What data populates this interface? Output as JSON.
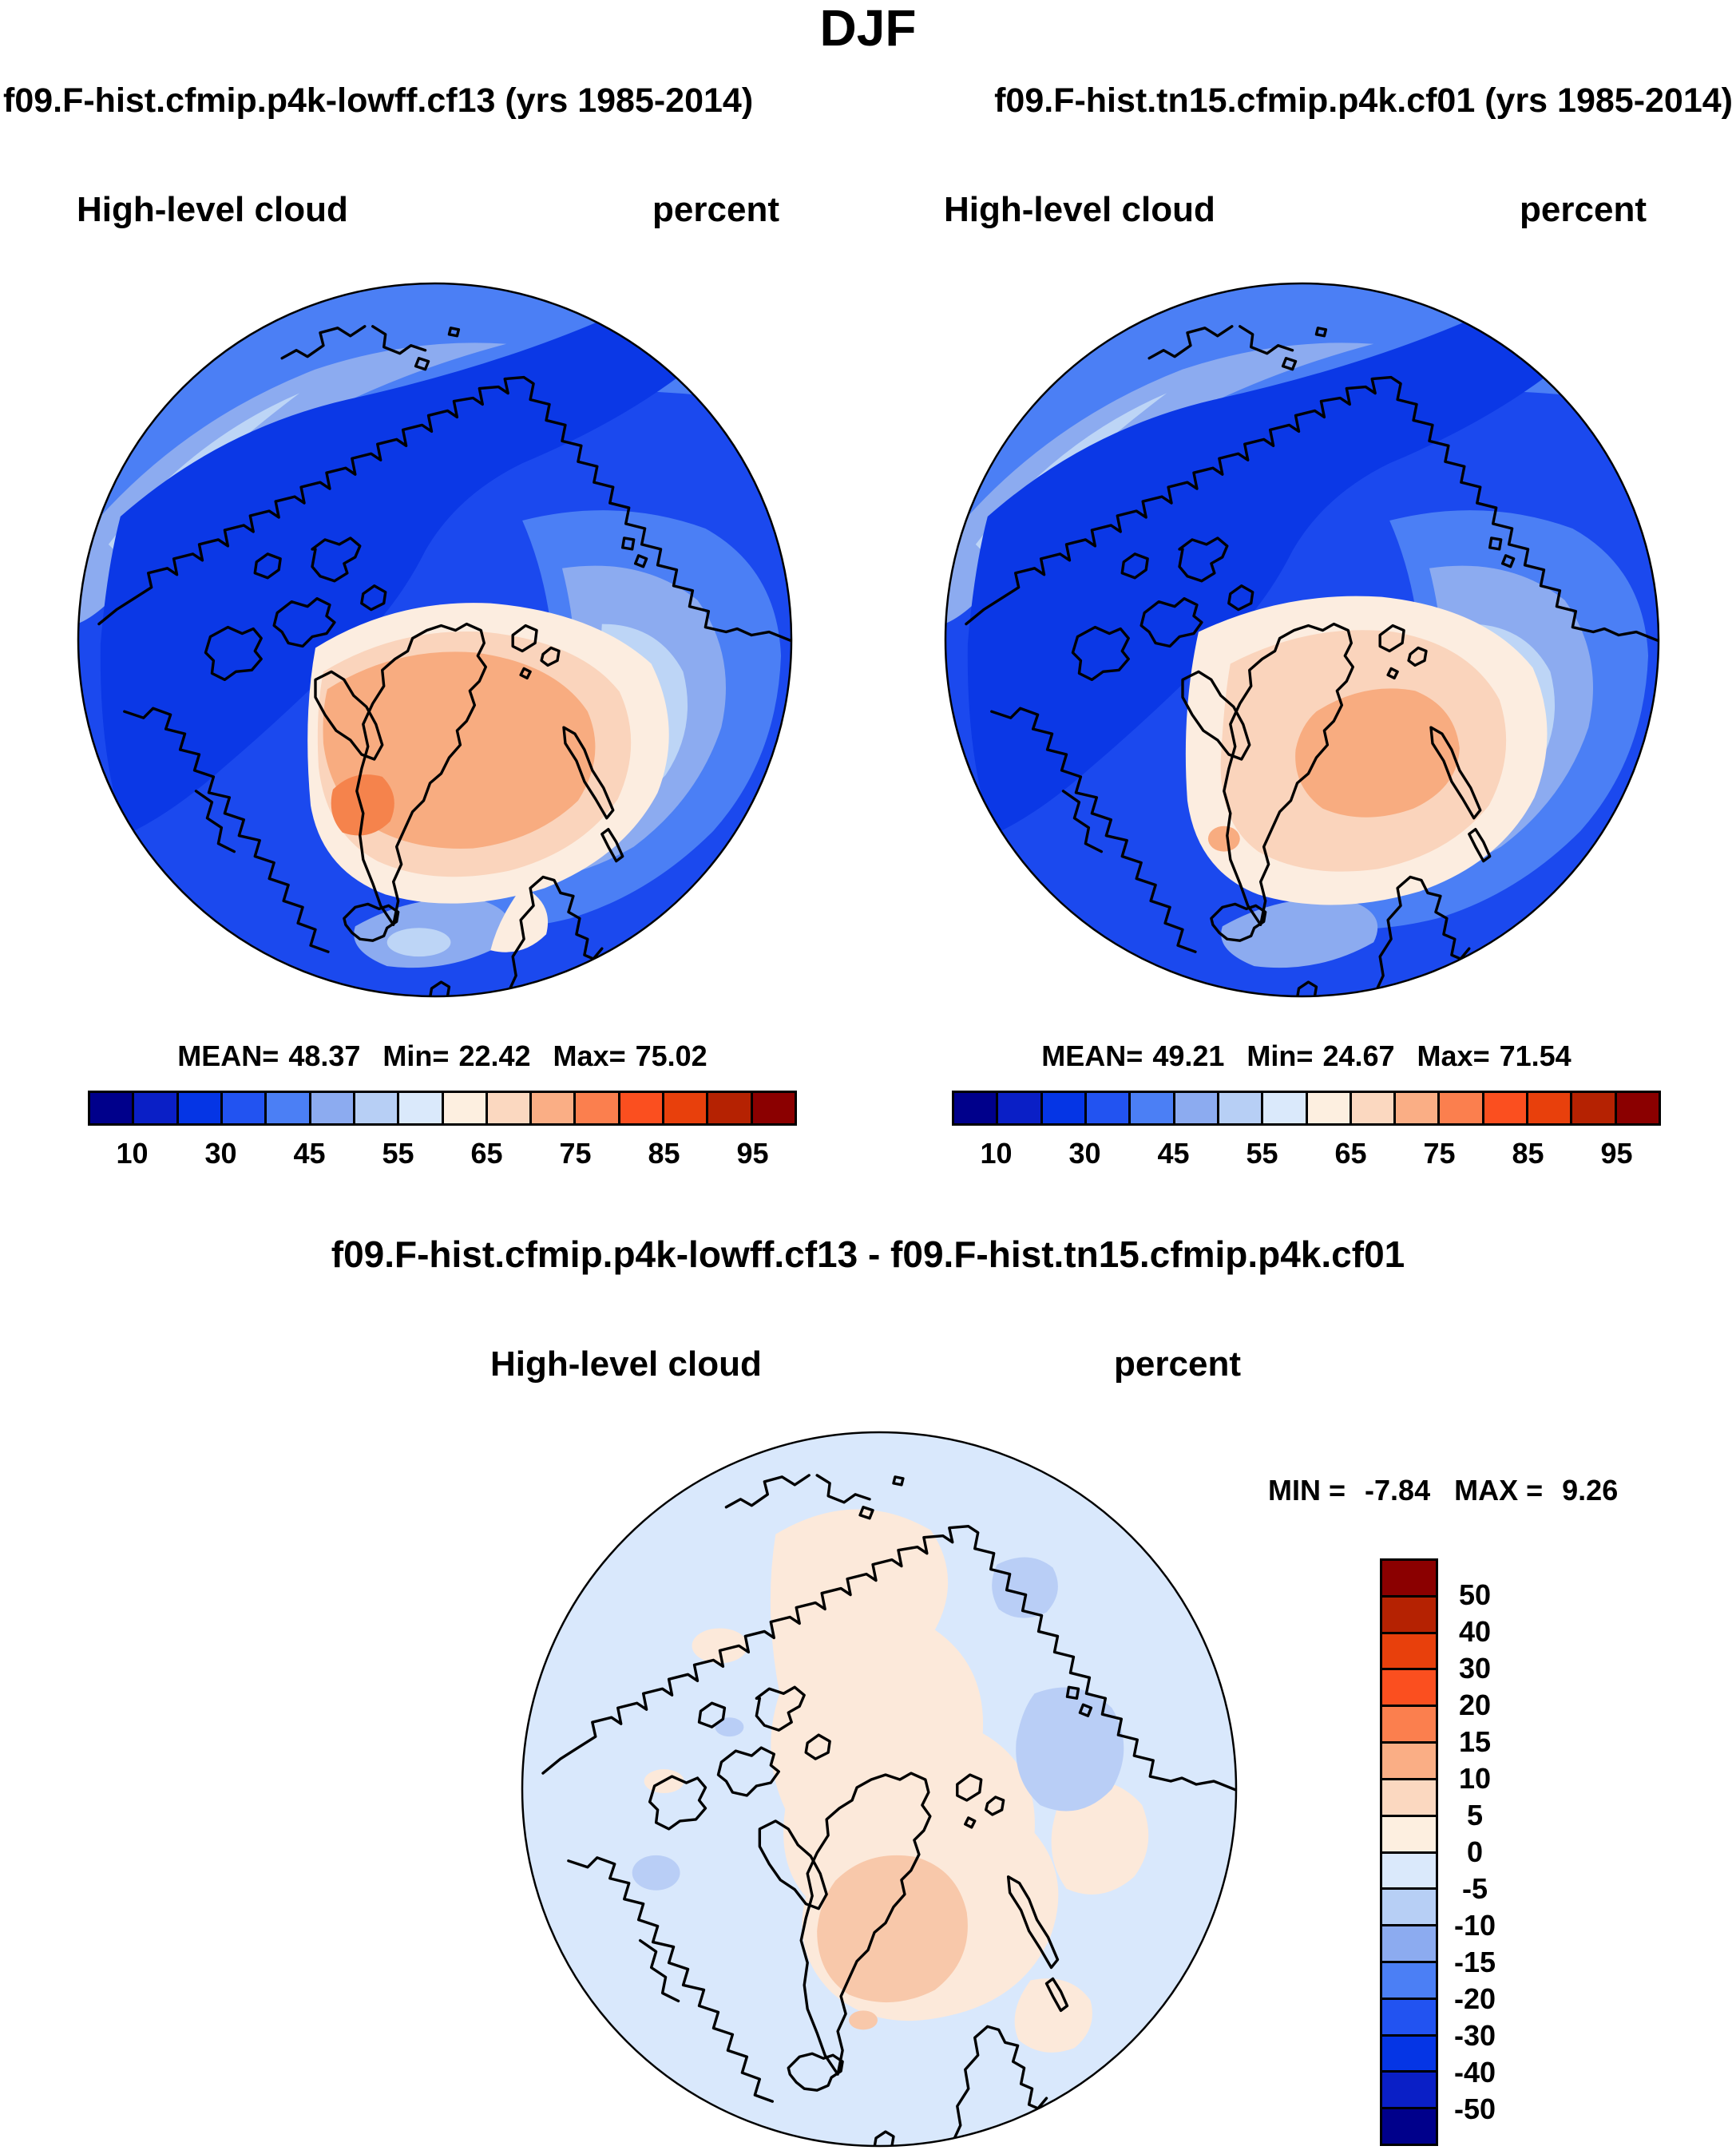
{
  "figure_title": "DJF",
  "header": {
    "left_run": "f09.F-hist.cfmip.p4k-lowff.cf13 (yrs 1985-2014)",
    "right_run": "f09.F-hist.tn15.cfmip.p4k.cf01 (yrs 1985-2014)"
  },
  "diff_title": "f09.F-hist.cfmip.p4k-lowff.cf13 - f09.F-hist.tn15.cfmip.p4k.cf01",
  "labels": {
    "mean": "MEAN=",
    "min": "Min=",
    "max": "Max=",
    "diff_min": "MIN =",
    "diff_max": "MAX ="
  },
  "chart_data": [
    {
      "id": "panel-model-1",
      "type": "heatmap",
      "projection": "north polar stereographic",
      "season": "DJF",
      "title": "f09.F-hist.cfmip.p4k-lowff.cf13 (yrs 1985-2014)",
      "variable": "High-level cloud",
      "units": "percent",
      "stats": {
        "mean": 48.37,
        "min": 22.42,
        "max": 75.02
      },
      "stats_text": {
        "mean": "48.37",
        "min": "22.42",
        "max": "75.02"
      },
      "colorbar": {
        "orientation": "horizontal",
        "levels": [
          10,
          20,
          30,
          40,
          45,
          50,
          55,
          60,
          65,
          70,
          75,
          80,
          85,
          90,
          95
        ],
        "tick_labels": [
          "10",
          "30",
          "45",
          "55",
          "65",
          "75",
          "85",
          "95"
        ],
        "tick_positions": [
          1,
          3,
          5,
          7,
          9,
          11,
          13,
          15
        ],
        "segments": 16,
        "colors": [
          "#00008B",
          "#0A1FC6",
          "#0535E5",
          "#2253F1",
          "#4B7FF5",
          "#8CABF0",
          "#B7CFF5",
          "#DAE9FB",
          "#FDEFE0",
          "#FBD8C0",
          "#FAAE85",
          "#FB7F4E",
          "#FB4F1F",
          "#E8400C",
          "#B52202",
          "#8B0000"
        ]
      }
    },
    {
      "id": "panel-model-2",
      "type": "heatmap",
      "projection": "north polar stereographic",
      "season": "DJF",
      "title": "f09.F-hist.tn15.cfmip.p4k.cf01 (yrs 1985-2014)",
      "variable": "High-level cloud",
      "units": "percent",
      "stats": {
        "mean": 49.21,
        "min": 24.67,
        "max": 71.54
      },
      "stats_text": {
        "mean": "49.21",
        "min": "24.67",
        "max": "71.54"
      },
      "colorbar": {
        "orientation": "horizontal",
        "levels": [
          10,
          20,
          30,
          40,
          45,
          50,
          55,
          60,
          65,
          70,
          75,
          80,
          85,
          90,
          95
        ],
        "tick_labels": [
          "10",
          "30",
          "45",
          "55",
          "65",
          "75",
          "85",
          "95"
        ],
        "tick_positions": [
          1,
          3,
          5,
          7,
          9,
          11,
          13,
          15
        ],
        "segments": 16,
        "colors": [
          "#00008B",
          "#0A1FC6",
          "#0535E5",
          "#2253F1",
          "#4B7FF5",
          "#8CABF0",
          "#B7CFF5",
          "#DAE9FB",
          "#FDEFE0",
          "#FBD8C0",
          "#FAAE85",
          "#FB7F4E",
          "#FB4F1F",
          "#E8400C",
          "#B52202",
          "#8B0000"
        ]
      }
    },
    {
      "id": "panel-difference",
      "type": "heatmap",
      "projection": "north polar stereographic",
      "season": "DJF",
      "title": "f09.F-hist.cfmip.p4k-lowff.cf13 - f09.F-hist.tn15.cfmip.p4k.cf01",
      "variable": "High-level cloud",
      "units": "percent",
      "stats": {
        "min": -7.84,
        "max": 9.26
      },
      "stats_text": {
        "min": "-7.84",
        "max": "9.26"
      },
      "colorbar": {
        "orientation": "vertical",
        "levels_top_to_bottom": [
          50,
          40,
          30,
          20,
          15,
          10,
          5,
          0,
          -5,
          -10,
          -15,
          -20,
          -30,
          -40,
          -50
        ],
        "tick_labels": [
          "50",
          "40",
          "30",
          "20",
          "15",
          "10",
          "5",
          "0",
          "-5",
          "-10",
          "-15",
          "-20",
          "-30",
          "-40",
          "-50"
        ],
        "tick_positions": [
          1,
          2,
          3,
          4,
          5,
          6,
          7,
          8,
          9,
          10,
          11,
          12,
          13,
          14,
          15
        ],
        "segments": 16,
        "colors": [
          "#8B0000",
          "#B52202",
          "#E8400C",
          "#FB4F1F",
          "#FB7F4E",
          "#FAAE85",
          "#FBD8C0",
          "#FDEFE0",
          "#DAE9FB",
          "#B7CFF5",
          "#8CABF0",
          "#4B7FF5",
          "#2253F1",
          "#0535E5",
          "#0A1FC6",
          "#00008B"
        ]
      }
    }
  ]
}
